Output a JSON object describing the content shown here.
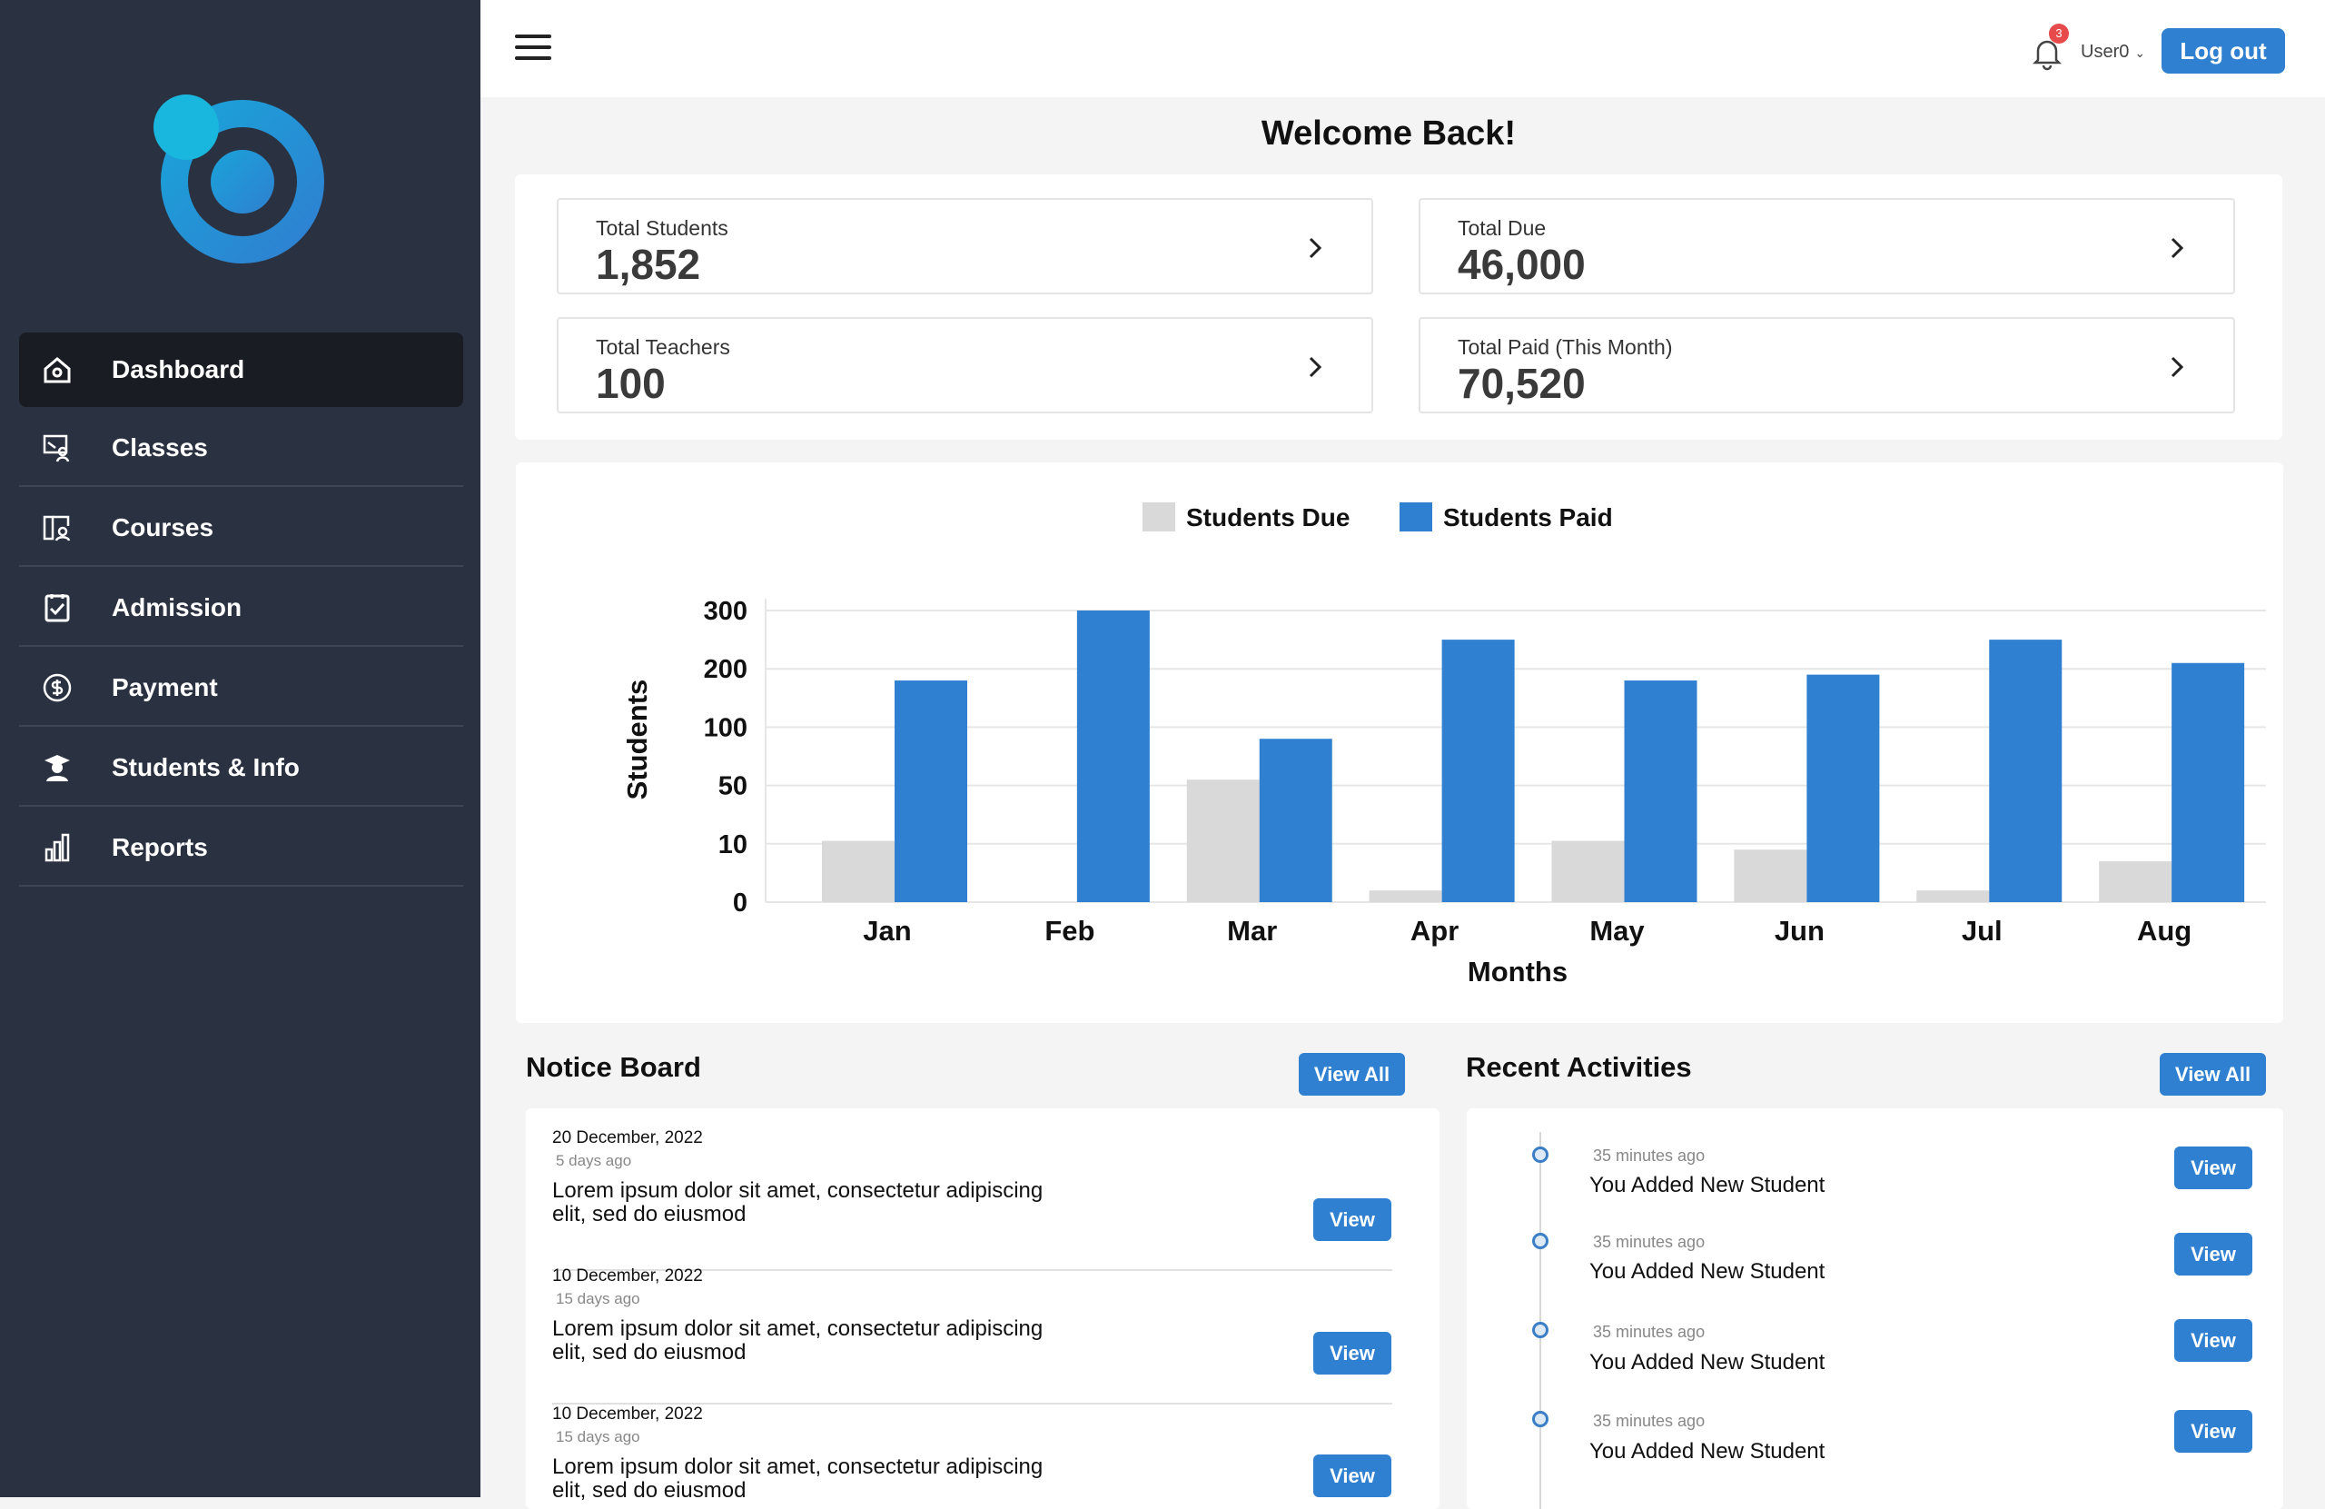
{
  "sidebar": {
    "items": [
      {
        "label": "Dashboard",
        "icon": "home-icon"
      },
      {
        "label": "Classes",
        "icon": "classes-icon"
      },
      {
        "label": "Courses",
        "icon": "courses-icon"
      },
      {
        "label": "Admission",
        "icon": "clipboard-check-icon"
      },
      {
        "label": "Payment",
        "icon": "dollar-coin-icon"
      },
      {
        "label": "Students & Info",
        "icon": "student-icon"
      },
      {
        "label": "Reports",
        "icon": "bar-chart-icon"
      }
    ]
  },
  "topbar": {
    "notification_count": "3",
    "user": "User0",
    "logout_label": "Log out"
  },
  "main": {
    "welcome": "Welcome Back!",
    "stats": [
      {
        "label": "Total Students",
        "value": "1,852"
      },
      {
        "label": "Total Due",
        "value": "46,000"
      },
      {
        "label": "Total Teachers",
        "value": "100"
      },
      {
        "label": "Total Paid (This Month)",
        "value": "70,520"
      }
    ]
  },
  "chart_data": {
    "type": "bar",
    "categories": [
      "Jan",
      "Feb",
      "Mar",
      "Apr",
      "May",
      "Jun",
      "Jul",
      "Aug"
    ],
    "series": [
      {
        "name": "Students Due",
        "color": "#d9d9d9",
        "values": [
          12,
          0,
          55,
          2,
          12,
          9,
          2,
          7
        ]
      },
      {
        "name": "Students Paid",
        "color": "#2f80d1",
        "values": [
          180,
          300,
          90,
          250,
          180,
          190,
          250,
          210
        ]
      }
    ],
    "yticks": [
      "0",
      "10",
      "50",
      "100",
      "200",
      "300"
    ],
    "xlabel": "Months",
    "ylabel": "Students",
    "legend_position": "top-center",
    "grid": true
  },
  "notice_board": {
    "title": "Notice Board",
    "view_all_label": "View All",
    "items": [
      {
        "date": "20 December, 2022",
        "ago": "5 days ago",
        "text": "Lorem ipsum dolor sit amet, consectetur adipiscing elit, sed do eiusmod",
        "button": "View"
      },
      {
        "date": "10 December, 2022",
        "ago": "15 days ago",
        "text": "Lorem ipsum dolor sit amet, consectetur adipiscing elit, sed do eiusmod",
        "button": "View"
      },
      {
        "date": "10 December, 2022",
        "ago": "15 days ago",
        "text": "Lorem ipsum dolor sit amet, consectetur adipiscing elit, sed do eiusmod",
        "button": "View"
      }
    ]
  },
  "recent_activities": {
    "title": "Recent Activities",
    "view_all_label": "View All",
    "items": [
      {
        "ago": "35 minutes ago",
        "text": "You Added New Student",
        "button": "View"
      },
      {
        "ago": "35 minutes ago",
        "text": "You Added New Student",
        "button": "View"
      },
      {
        "ago": "35 minutes ago",
        "text": "You Added New Student",
        "button": "View"
      },
      {
        "ago": "35 minutes ago",
        "text": "You Added New Student",
        "button": "View"
      }
    ]
  }
}
